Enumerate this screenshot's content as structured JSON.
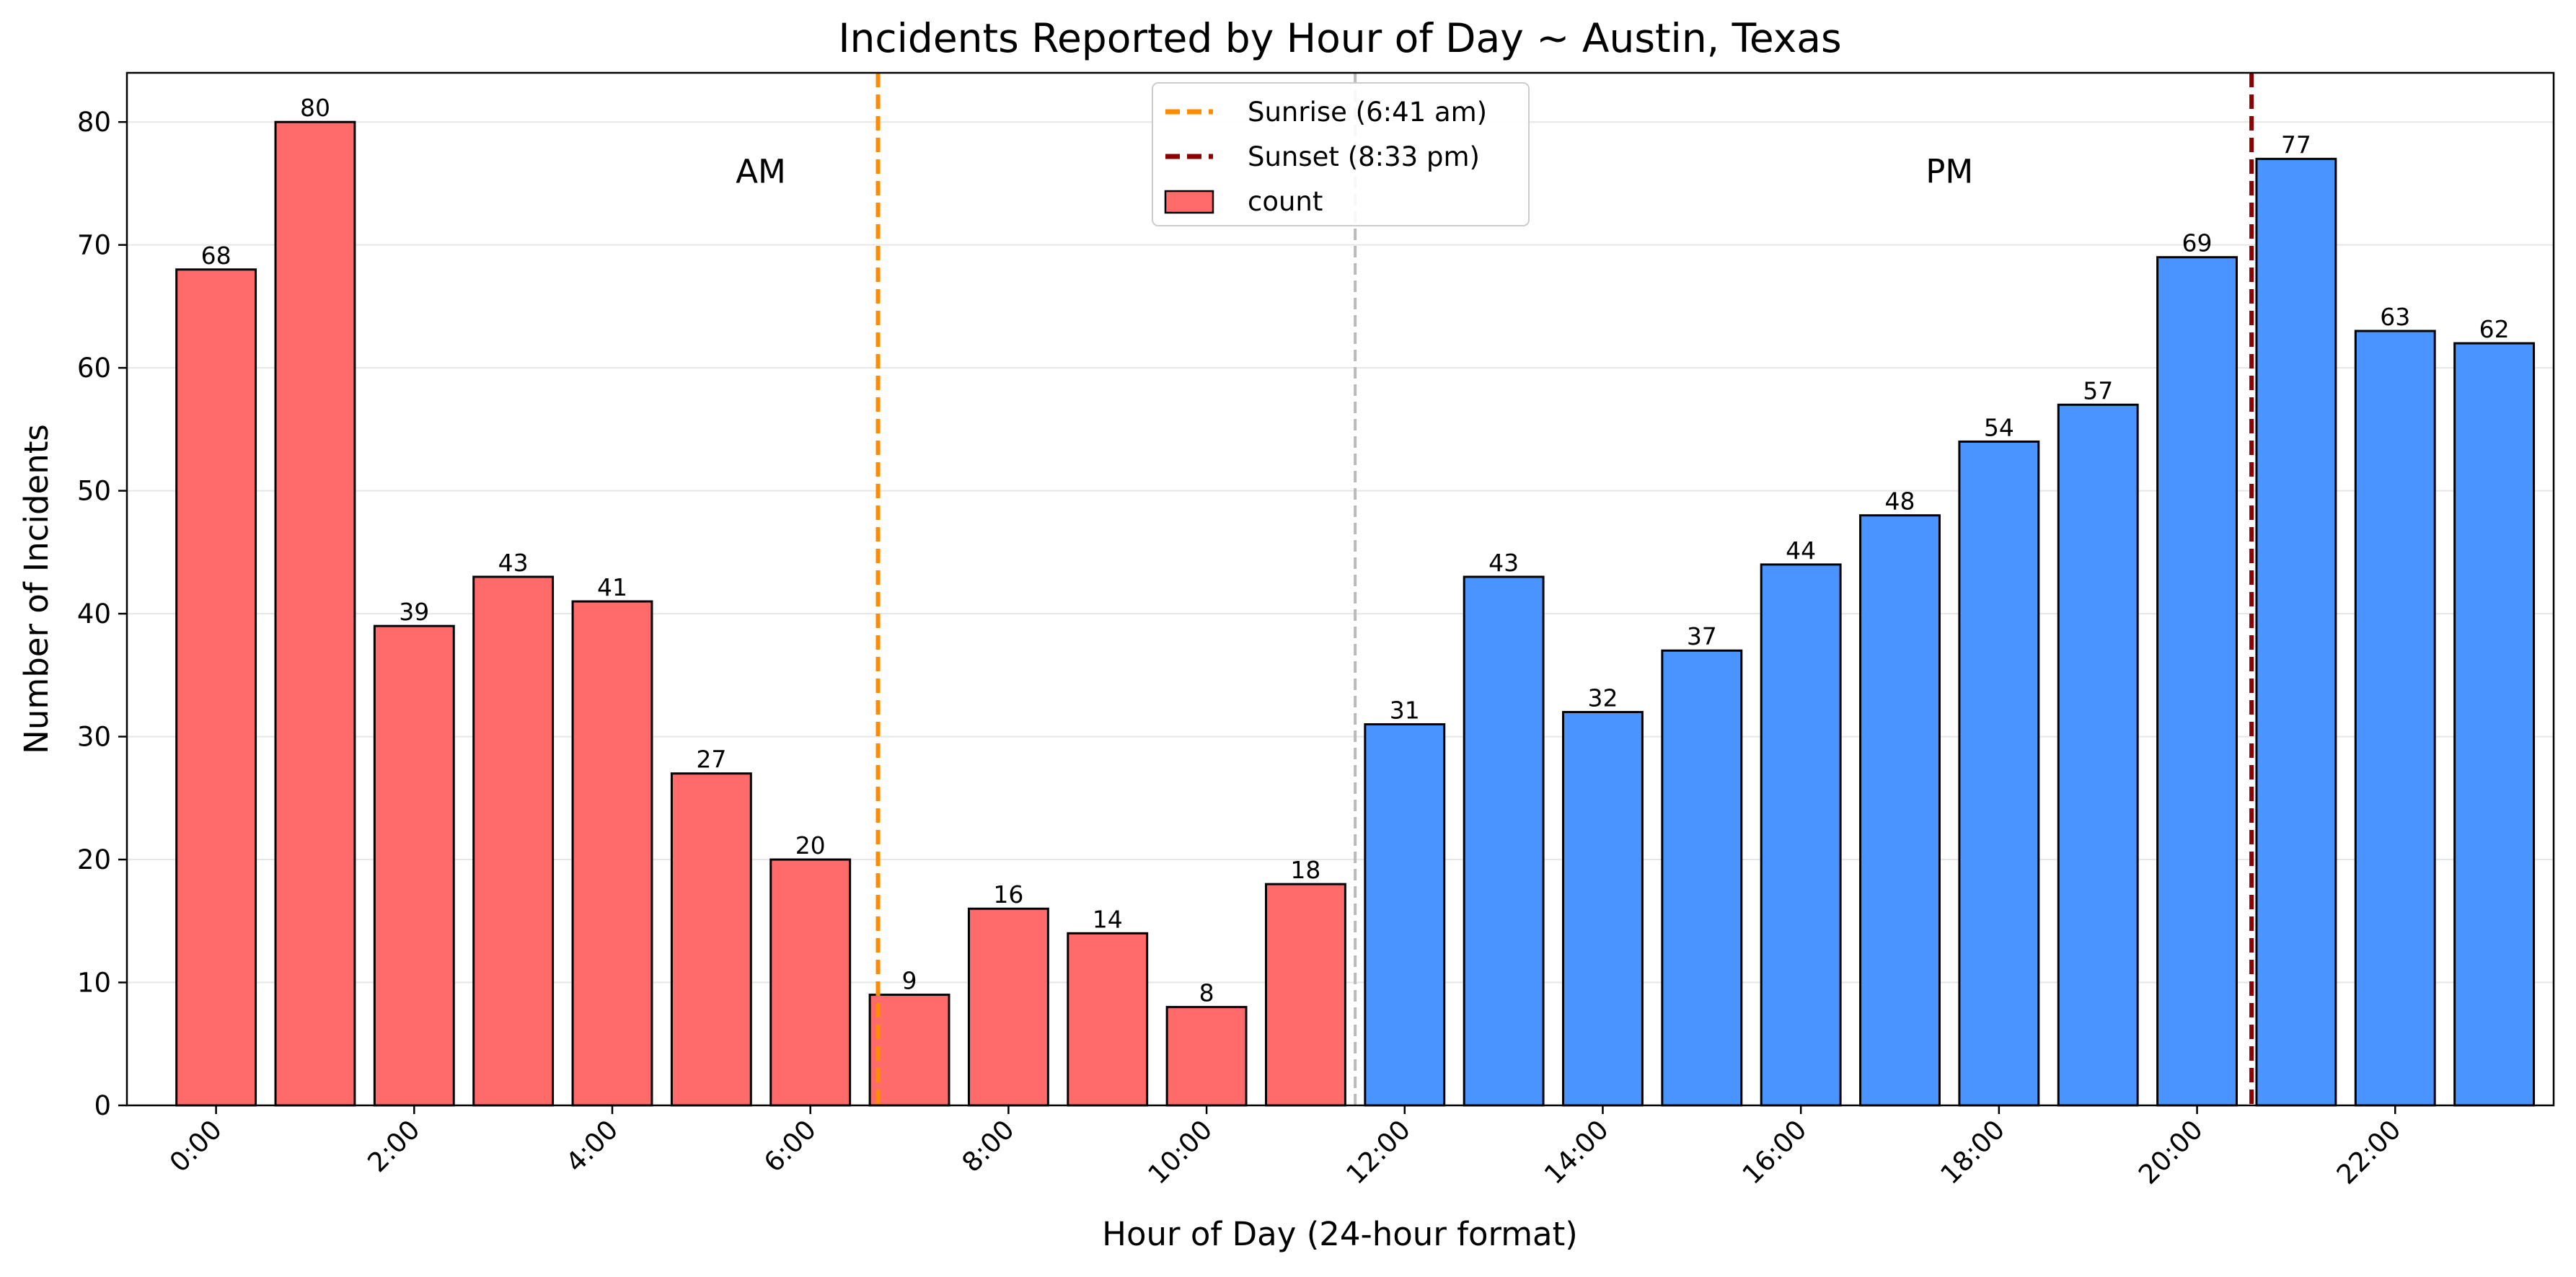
{
  "chart_data": {
    "type": "bar",
    "title": "Incidents Reported by Hour of Day ~ Austin, Texas",
    "xlabel": "Hour of Day (24-hour format)",
    "ylabel": "Number of Incidents",
    "ylim": [
      0,
      84
    ],
    "yticks": [
      0,
      10,
      20,
      30,
      40,
      50,
      60,
      70,
      80
    ],
    "x_tick_positions": [
      0,
      2,
      4,
      6,
      8,
      10,
      12,
      14,
      16,
      18,
      20,
      22
    ],
    "x_tick_labels": [
      "0:00",
      "2:00",
      "4:00",
      "6:00",
      "8:00",
      "10:00",
      "12:00",
      "14:00",
      "16:00",
      "18:00",
      "20:00",
      "22:00"
    ],
    "x_range": [
      -0.9,
      23.6
    ],
    "hours": [
      0,
      1,
      2,
      3,
      4,
      5,
      6,
      7,
      8,
      9,
      10,
      11,
      12,
      13,
      14,
      15,
      16,
      17,
      18,
      19,
      20,
      21,
      22,
      23
    ],
    "values": [
      68,
      80,
      39,
      43,
      41,
      27,
      20,
      9,
      16,
      14,
      8,
      18,
      31,
      43,
      32,
      37,
      44,
      48,
      54,
      57,
      69,
      77,
      63,
      62
    ],
    "am_color": "#ff6b6b",
    "pm_color": "#4a94ff",
    "bar_edge_color": "#000000",
    "grid": "horizontal",
    "legend_position": "top-center",
    "series": [
      {
        "name": "count"
      }
    ],
    "reference_lines": [
      {
        "name": "Sunrise (6:41 am)",
        "x": 6.683,
        "color": "#ff8c00",
        "style": "dashed"
      },
      {
        "name": "Sunset (8:33 pm)",
        "x": 20.55,
        "color": "#8b0000",
        "style": "dashed"
      },
      {
        "name": "",
        "x": 11.5,
        "color": "#bbbbbb",
        "style": "dashed"
      }
    ],
    "annotations": [
      {
        "text": "AM",
        "x": 5.5,
        "y": 76
      },
      {
        "text": "PM",
        "x": 17.5,
        "y": 76
      }
    ]
  }
}
